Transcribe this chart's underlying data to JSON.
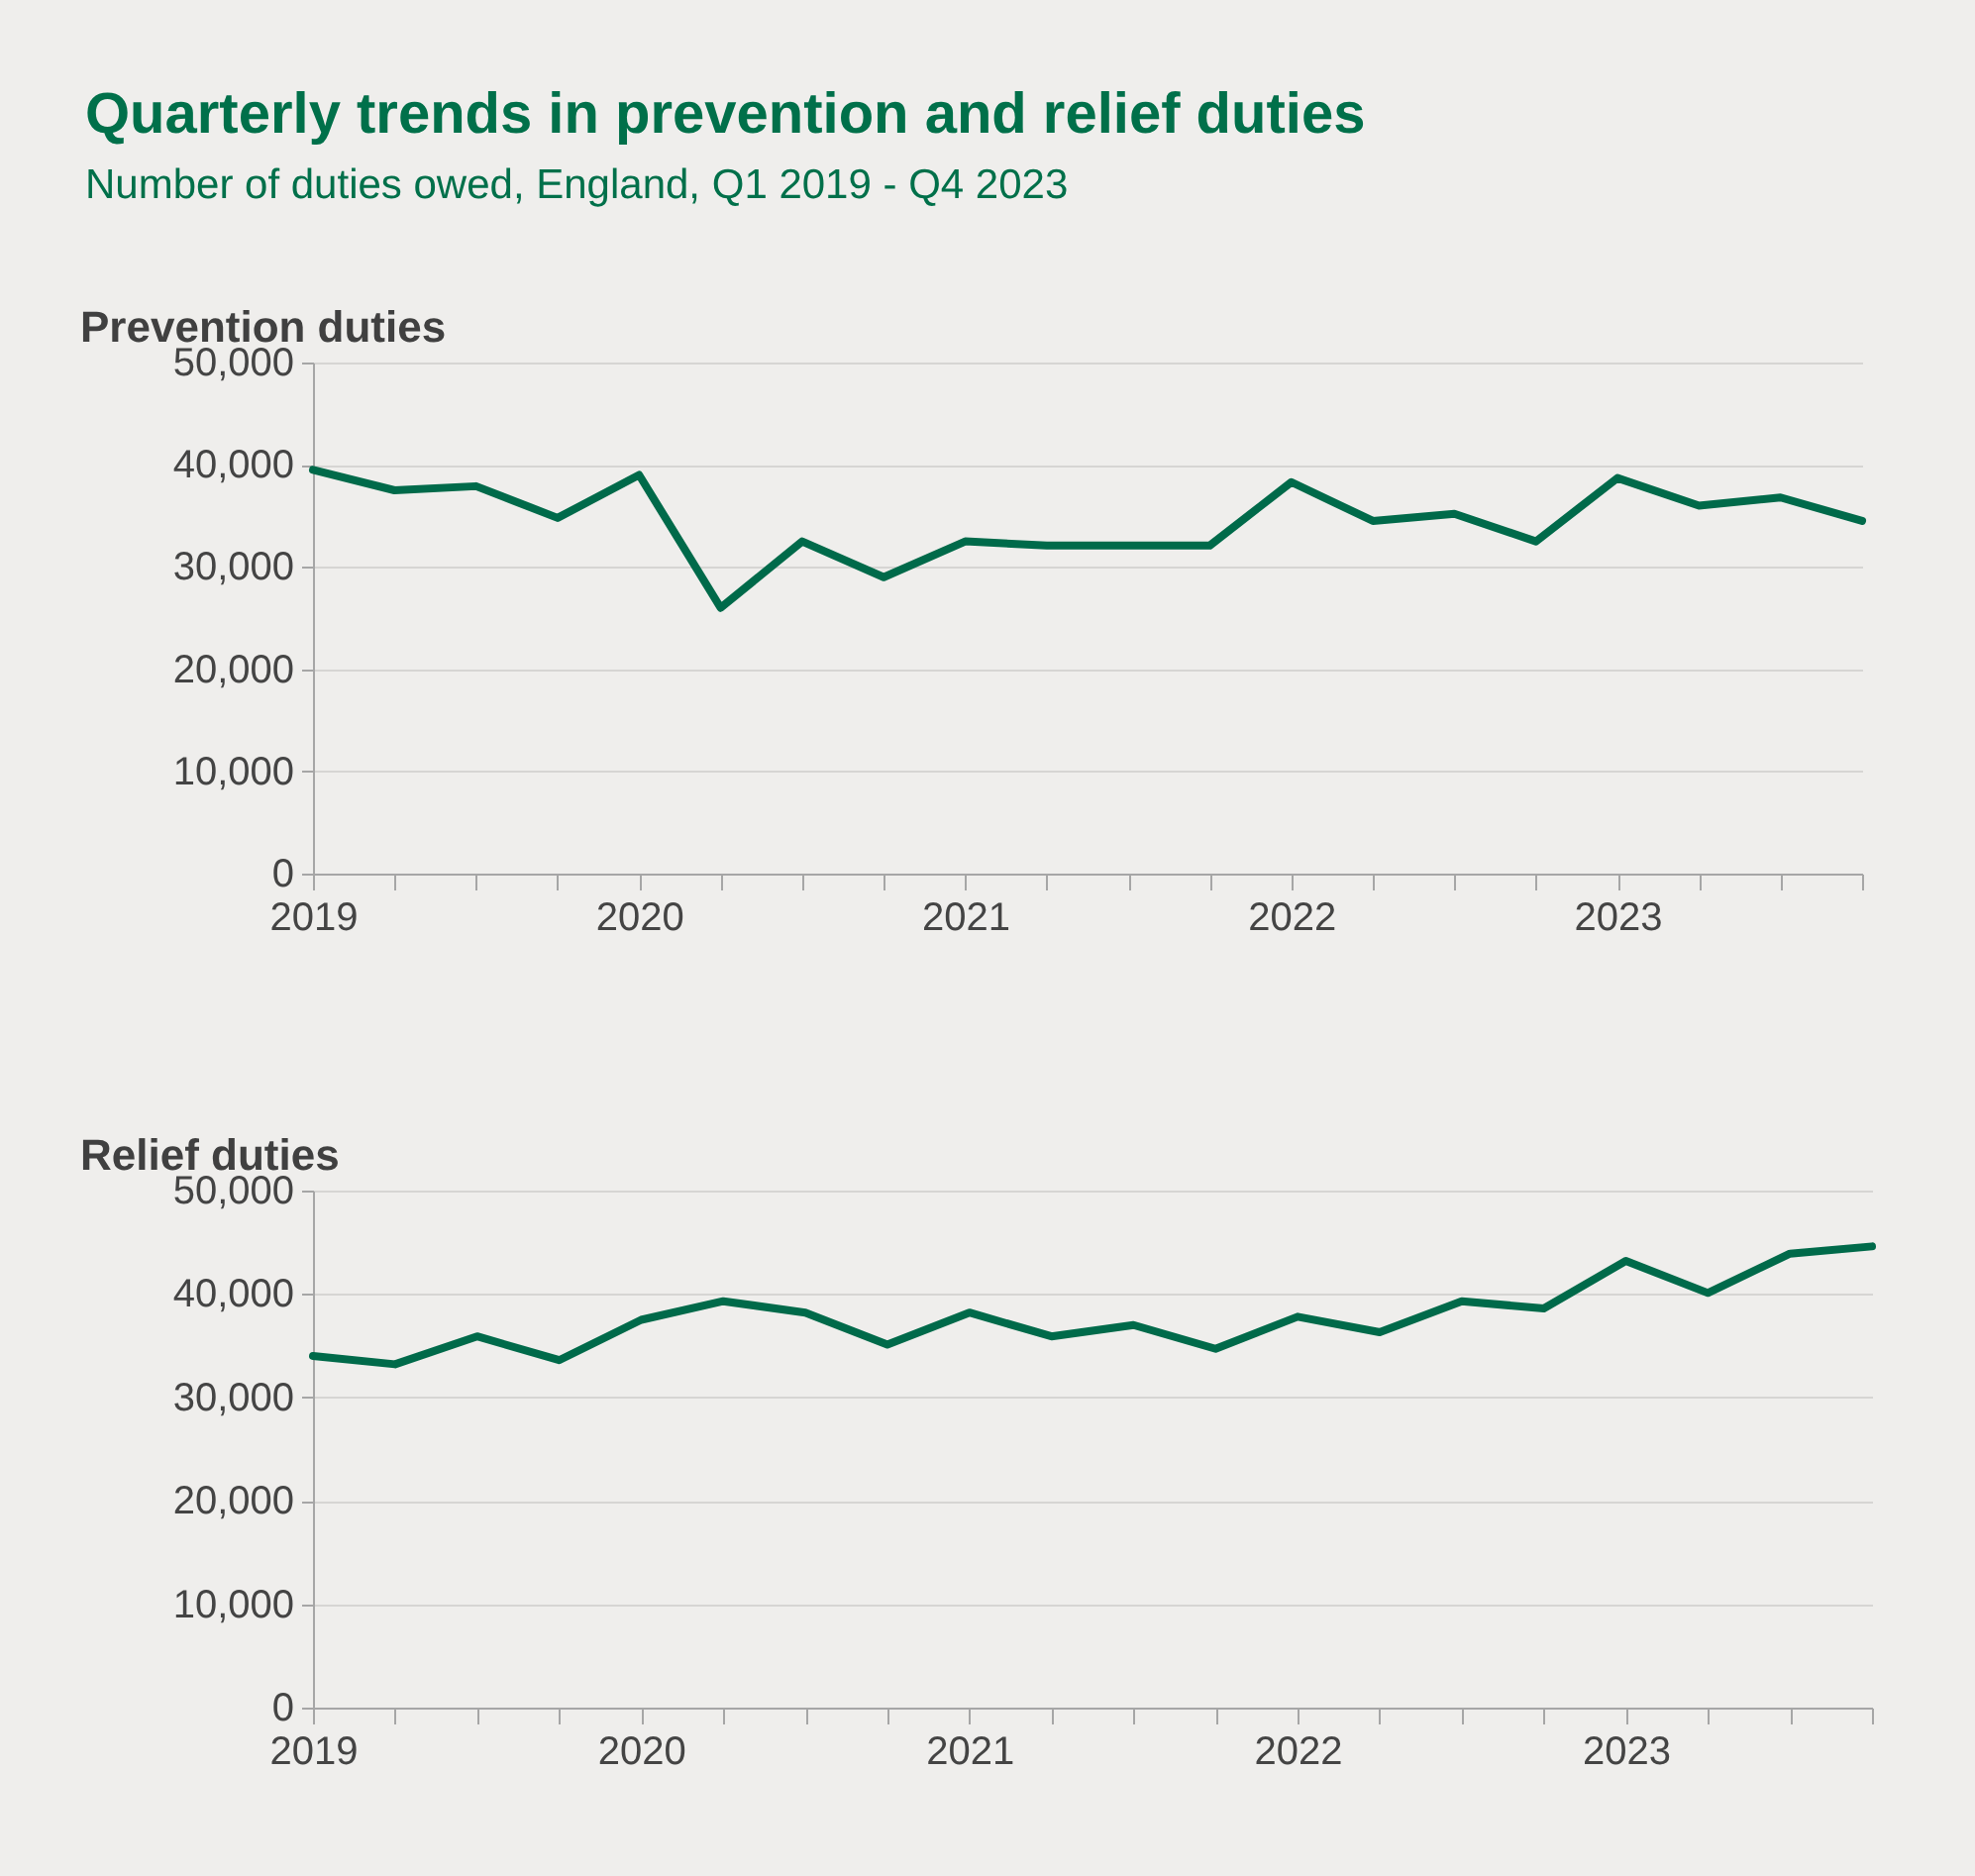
{
  "chart_data": [
    {
      "type": "line",
      "title": "Quarterly trends in prevention and relief duties",
      "subtitle": "Number of duties owed, England, Q1 2019 - Q4 2023",
      "ylabel": "Prevention duties",
      "categories": [
        "2019",
        null,
        null,
        null,
        "2020",
        null,
        null,
        null,
        "2021",
        null,
        null,
        null,
        "2022",
        null,
        null,
        null,
        "2023",
        null,
        null,
        null
      ],
      "values": [
        39500,
        37500,
        37900,
        34800,
        39000,
        26000,
        32500,
        29000,
        32500,
        32100,
        32100,
        32100,
        38300,
        34500,
        35200,
        32500,
        38700,
        36000,
        36800,
        34500
      ],
      "color": "#006a4a",
      "ylim": [
        0,
        50000
      ],
      "yticks": [
        {
          "value": 0,
          "label": "0"
        },
        {
          "value": 10000,
          "label": "10,000"
        },
        {
          "value": 20000,
          "label": "20,000"
        },
        {
          "value": 30000,
          "label": "30,000"
        },
        {
          "value": 40000,
          "label": "40,000"
        },
        {
          "value": 50000,
          "label": "50,000"
        }
      ],
      "grid": "y"
    },
    {
      "type": "line",
      "ylabel": "Relief duties",
      "categories": [
        "2019",
        null,
        null,
        null,
        "2020",
        null,
        null,
        null,
        "2021",
        null,
        null,
        null,
        "2022",
        null,
        null,
        null,
        "2023",
        null,
        null,
        null
      ],
      "values": [
        34000,
        33200,
        35900,
        33600,
        37500,
        39300,
        38200,
        35100,
        38200,
        35900,
        37000,
        34700,
        37800,
        36300,
        39300,
        38600,
        43200,
        40100,
        43900,
        44600
      ],
      "color": "#006a4a",
      "ylim": [
        0,
        50000
      ],
      "yticks": [
        {
          "value": 0,
          "label": "0"
        },
        {
          "value": 10000,
          "label": "10,000"
        },
        {
          "value": 20000,
          "label": "20,000"
        },
        {
          "value": 30000,
          "label": "30,000"
        },
        {
          "value": 40000,
          "label": "40,000"
        },
        {
          "value": 50000,
          "label": "50,000"
        }
      ],
      "grid": "y"
    }
  ]
}
